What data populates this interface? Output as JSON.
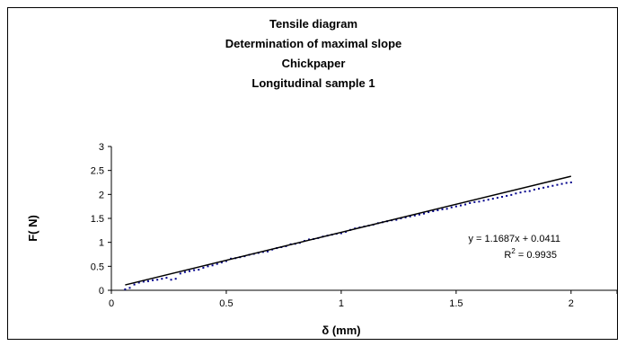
{
  "chart_data": {
    "type": "scatter",
    "title_lines": [
      "Tensile diagram",
      "Determination of maximal slope",
      "Chickpaper",
      "Longitudinal sample 1"
    ],
    "xlabel": "δ (mm)",
    "ylabel": "F( N)",
    "xlim": [
      0,
      2.2
    ],
    "ylim": [
      0,
      3
    ],
    "x_ticks": [
      0,
      0.5,
      1,
      1.5,
      2
    ],
    "x_tick_labels": [
      "0",
      "0.5",
      "1",
      "1.5",
      "2"
    ],
    "y_ticks": [
      0,
      0.5,
      1,
      1.5,
      2,
      2.5,
      3
    ],
    "y_tick_labels": [
      "0",
      "0.5",
      "1",
      "1.5",
      "2",
      "2.5",
      "3"
    ],
    "grid": false,
    "legend": "none",
    "series": [
      {
        "marker_color": "#00008b",
        "x": [
          0.06,
          0.08,
          0.1,
          0.12,
          0.14,
          0.16,
          0.18,
          0.2,
          0.22,
          0.24,
          0.26,
          0.28,
          0.3,
          0.32,
          0.34,
          0.36,
          0.38,
          0.4,
          0.42,
          0.44,
          0.46,
          0.48,
          0.5,
          0.52,
          0.54,
          0.56,
          0.58,
          0.6,
          0.62,
          0.64,
          0.66,
          0.68,
          0.7,
          0.72,
          0.74,
          0.76,
          0.78,
          0.8,
          0.82,
          0.84,
          0.86,
          0.88,
          0.9,
          0.92,
          0.94,
          0.96,
          0.98,
          1.0,
          1.02,
          1.04,
          1.06,
          1.08,
          1.1,
          1.12,
          1.14,
          1.16,
          1.18,
          1.2,
          1.22,
          1.24,
          1.26,
          1.28,
          1.3,
          1.32,
          1.34,
          1.36,
          1.38,
          1.4,
          1.42,
          1.44,
          1.46,
          1.48,
          1.5,
          1.52,
          1.54,
          1.56,
          1.58,
          1.6,
          1.62,
          1.64,
          1.66,
          1.68,
          1.7,
          1.72,
          1.74,
          1.76,
          1.78,
          1.8,
          1.82,
          1.84,
          1.86,
          1.88,
          1.9,
          1.92,
          1.94,
          1.96,
          1.98,
          2.0
        ],
        "y": [
          0.02,
          0.05,
          0.12,
          0.16,
          0.18,
          0.19,
          0.21,
          0.22,
          0.24,
          0.26,
          0.22,
          0.24,
          0.35,
          0.38,
          0.4,
          0.42,
          0.43,
          0.47,
          0.5,
          0.52,
          0.55,
          0.58,
          0.61,
          0.66,
          0.67,
          0.69,
          0.71,
          0.74,
          0.76,
          0.78,
          0.8,
          0.81,
          0.85,
          0.88,
          0.9,
          0.92,
          0.96,
          0.97,
          0.99,
          1.03,
          1.06,
          1.07,
          1.09,
          1.12,
          1.14,
          1.16,
          1.18,
          1.19,
          1.22,
          1.26,
          1.29,
          1.31,
          1.33,
          1.35,
          1.37,
          1.4,
          1.42,
          1.44,
          1.46,
          1.47,
          1.5,
          1.52,
          1.54,
          1.56,
          1.58,
          1.6,
          1.63,
          1.65,
          1.67,
          1.69,
          1.7,
          1.73,
          1.75,
          1.77,
          1.79,
          1.82,
          1.84,
          1.85,
          1.87,
          1.89,
          1.91,
          1.93,
          1.95,
          1.97,
          1.99,
          2.02,
          2.04,
          2.06,
          2.07,
          2.1,
          2.12,
          2.14,
          2.16,
          2.18,
          2.2,
          2.22,
          2.24,
          2.25
        ]
      }
    ],
    "trendline": {
      "slope": 1.1687,
      "intercept": 0.0411,
      "x_range": [
        0.06,
        2.0
      ],
      "color": "#000000"
    },
    "annotations": {
      "equation": "y = 1.1687x + 0.0411",
      "r2_label": "R",
      "r2_sup": "2",
      "r2_value": " = 0.9935"
    }
  }
}
